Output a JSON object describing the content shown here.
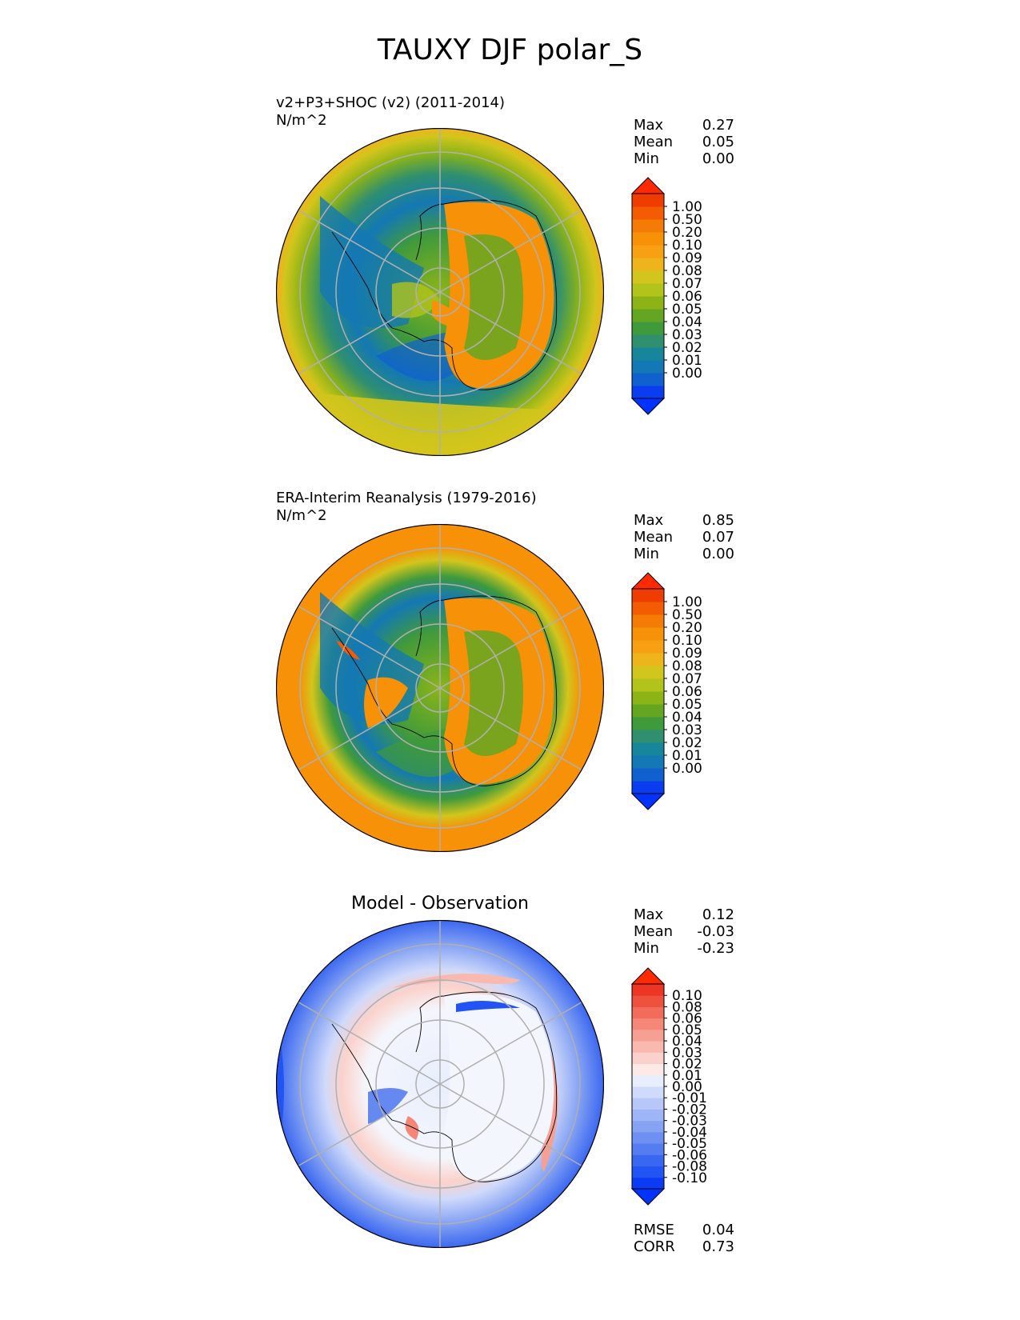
{
  "title": "TAUXY DJF polar_S",
  "panels": [
    {
      "id": "test",
      "name": "v2+P3+SHOC (v2) (2011-2014)",
      "units": "N/m^2",
      "stats": [
        {
          "label": "Max",
          "value": "0.27"
        },
        {
          "label": "Mean",
          "value": "0.05"
        },
        {
          "label": "Min",
          "value": "0.00"
        }
      ],
      "colorbar": {
        "ticks": [
          "1.00",
          "0.50",
          "0.20",
          "0.10",
          "0.09",
          "0.08",
          "0.07",
          "0.06",
          "0.05",
          "0.04",
          "0.03",
          "0.02",
          "0.01",
          "0.00"
        ],
        "colors": [
          "#0a3cf0",
          "#1060d0",
          "#1478b4",
          "#17869b",
          "#2f8f6f",
          "#3f9a3c",
          "#64a622",
          "#8cb417",
          "#b2c31b",
          "#d2c51d",
          "#eeb41b",
          "#f8a014",
          "#f79108",
          "#f47b05",
          "#f35c03",
          "#ef3d02"
        ],
        "over": "#ff2a00",
        "under": "#0033ff"
      }
    },
    {
      "id": "reference",
      "name": "ERA-Interim Reanalysis (1979-2016)",
      "units": "N/m^2",
      "stats": [
        {
          "label": "Max",
          "value": "0.85"
        },
        {
          "label": "Mean",
          "value": "0.07"
        },
        {
          "label": "Min",
          "value": "0.00"
        }
      ],
      "colorbar": {
        "ticks": [
          "1.00",
          "0.50",
          "0.20",
          "0.10",
          "0.09",
          "0.08",
          "0.07",
          "0.06",
          "0.05",
          "0.04",
          "0.03",
          "0.02",
          "0.01",
          "0.00"
        ],
        "colors": [
          "#0a3cf0",
          "#1060d0",
          "#1478b4",
          "#17869b",
          "#2f8f6f",
          "#3f9a3c",
          "#64a622",
          "#8cb417",
          "#b2c31b",
          "#d2c51d",
          "#eeb41b",
          "#f8a014",
          "#f79108",
          "#f47b05",
          "#f35c03",
          "#ef3d02"
        ],
        "over": "#ff2a00",
        "under": "#0033ff"
      }
    },
    {
      "id": "diff",
      "name": "Model - Observation",
      "stats": [
        {
          "label": "Max",
          "value": "0.12"
        },
        {
          "label": "Mean",
          "value": "-0.03"
        },
        {
          "label": "Min",
          "value": "-0.23"
        }
      ],
      "metrics": [
        {
          "label": "RMSE",
          "value": "0.04"
        },
        {
          "label": "CORR",
          "value": "0.73"
        }
      ],
      "colorbar": {
        "ticks": [
          "0.10",
          "0.08",
          "0.06",
          "0.05",
          "0.04",
          "0.03",
          "0.02",
          "0.01",
          "0.00",
          "-0.01",
          "-0.02",
          "-0.03",
          "-0.04",
          "-0.05",
          "-0.06",
          "-0.08",
          "-0.10"
        ],
        "colors": [
          "#0a3cf5",
          "#2254f3",
          "#3a67f0",
          "#557cf0",
          "#6d90f2",
          "#86a3f3",
          "#9eb6f5",
          "#b7c8f8",
          "#d0dafa",
          "#e8eefc",
          "#fde9e6",
          "#fbd2cb",
          "#f9b9af",
          "#f6a094",
          "#f48778",
          "#f26c5b",
          "#ef513f",
          "#ec3522"
        ],
        "over": "#ff2a00",
        "under": "#0033ff"
      }
    }
  ],
  "chart_data": {
    "type": "heatmap",
    "title": "TAUXY DJF polar_S",
    "projection": "south polar stereographic",
    "panels": [
      {
        "name": "v2+P3+SHOC (v2) (2011-2014)",
        "units": "N/m^2",
        "max": 0.27,
        "mean": 0.05,
        "min": 0.0
      },
      {
        "name": "ERA-Interim Reanalysis (1979-2016)",
        "units": "N/m^2",
        "max": 0.85,
        "mean": 0.07,
        "min": 0.0
      },
      {
        "name": "Model - Observation",
        "max": 0.12,
        "mean": -0.03,
        "min": -0.23,
        "rmse": 0.04,
        "corr": 0.73
      }
    ]
  }
}
